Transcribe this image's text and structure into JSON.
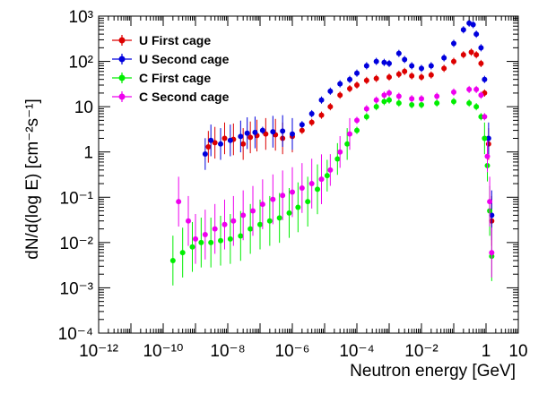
{
  "chart_data": {
    "type": "scatter",
    "xscale": "log",
    "yscale": "log",
    "xlim": [
      1e-12,
      10
    ],
    "ylim": [
      0.0001,
      1000
    ],
    "xlabel": "Neutron energy [GeV]",
    "ylabel": "dN/d(log E) [cm⁻²s⁻¹]",
    "grid": false,
    "legend": "top-left",
    "x_ticks": [
      {
        "label": "10⁻¹²",
        "value": 1e-12
      },
      {
        "label": "10⁻¹⁰",
        "value": 1e-10
      },
      {
        "label": "10⁻⁸",
        "value": 1e-08
      },
      {
        "label": "10⁻⁶",
        "value": 1e-06
      },
      {
        "label": "10⁻⁴",
        "value": 0.0001
      },
      {
        "label": "10⁻²",
        "value": 0.01
      },
      {
        "label": "1",
        "value": 1
      },
      {
        "label": "10",
        "value": 10
      }
    ],
    "y_ticks": [
      {
        "label": "10⁻⁴",
        "value": 0.0001
      },
      {
        "label": "10⁻³",
        "value": 0.001
      },
      {
        "label": "10⁻²",
        "value": 0.01
      },
      {
        "label": "10⁻¹",
        "value": 0.1
      },
      {
        "label": "1",
        "value": 1
      },
      {
        "label": "10",
        "value": 10
      },
      {
        "label": "10²",
        "value": 100
      },
      {
        "label": "10³",
        "value": 1000
      }
    ],
    "series": [
      {
        "name": "U First cage",
        "color": "#dd0000",
        "points": [
          [
            2.5e-09,
            1.3
          ],
          [
            4e-09,
            1.6
          ],
          [
            8e-09,
            2.0
          ],
          [
            1.5e-08,
            1.9
          ],
          [
            3e-08,
            1.5
          ],
          [
            5e-08,
            2.1
          ],
          [
            8e-08,
            2.3
          ],
          [
            1.5e-07,
            2.5
          ],
          [
            3e-07,
            2.4
          ],
          [
            5e-07,
            2.0
          ],
          [
            1e-06,
            2.2
          ],
          [
            2e-06,
            3.0
          ],
          [
            4e-06,
            4.5
          ],
          [
            8e-06,
            6.5
          ],
          [
            1.5e-05,
            10
          ],
          [
            3e-05,
            18
          ],
          [
            6e-05,
            25
          ],
          [
            0.0001,
            30
          ],
          [
            0.0002,
            38
          ],
          [
            0.0004,
            42
          ],
          [
            0.001,
            45
          ],
          [
            0.002,
            52
          ],
          [
            0.003,
            60
          ],
          [
            0.005,
            48
          ],
          [
            0.01,
            45
          ],
          [
            0.02,
            50
          ],
          [
            0.05,
            70
          ],
          [
            0.1,
            100
          ],
          [
            0.2,
            140
          ],
          [
            0.35,
            160
          ],
          [
            0.5,
            140
          ],
          [
            0.7,
            90
          ],
          [
            0.9,
            20
          ],
          [
            1.2,
            1.5
          ],
          [
            1.5,
            0.03
          ]
        ]
      },
      {
        "name": "U Second cage",
        "color": "#0000dd",
        "points": [
          [
            2e-09,
            0.9
          ],
          [
            3e-09,
            1.8
          ],
          [
            6e-09,
            1.5
          ],
          [
            1.2e-08,
            1.8
          ],
          [
            2.5e-08,
            2.2
          ],
          [
            4e-08,
            2.6
          ],
          [
            7e-08,
            2.7
          ],
          [
            1.2e-07,
            3.0
          ],
          [
            2.5e-07,
            2.8
          ],
          [
            5e-07,
            2.9
          ],
          [
            1e-06,
            2.5
          ],
          [
            2e-06,
            4.0
          ],
          [
            4e-06,
            7.0
          ],
          [
            8e-06,
            14
          ],
          [
            1.5e-05,
            22
          ],
          [
            3e-05,
            32
          ],
          [
            6e-05,
            40
          ],
          [
            0.0001,
            55
          ],
          [
            0.0002,
            80
          ],
          [
            0.0004,
            100
          ],
          [
            0.0007,
            95
          ],
          [
            0.001,
            90
          ],
          [
            0.002,
            150
          ],
          [
            0.003,
            110
          ],
          [
            0.005,
            80
          ],
          [
            0.01,
            70
          ],
          [
            0.02,
            80
          ],
          [
            0.05,
            120
          ],
          [
            0.1,
            250
          ],
          [
            0.2,
            500
          ],
          [
            0.3,
            700
          ],
          [
            0.4,
            650
          ],
          [
            0.5,
            400
          ],
          [
            0.7,
            200
          ],
          [
            0.9,
            40
          ],
          [
            1.2,
            2
          ],
          [
            1.5,
            0.04
          ]
        ]
      },
      {
        "name": "C First cage",
        "color": "#00ee00",
        "points": [
          [
            2e-10,
            0.004
          ],
          [
            4e-10,
            0.006
          ],
          [
            8e-10,
            0.008
          ],
          [
            1.5e-09,
            0.01
          ],
          [
            3e-09,
            0.01
          ],
          [
            6e-09,
            0.011
          ],
          [
            1.2e-08,
            0.012
          ],
          [
            2.5e-08,
            0.014
          ],
          [
            5e-08,
            0.02
          ],
          [
            1e-07,
            0.025
          ],
          [
            2e-07,
            0.03
          ],
          [
            4e-07,
            0.035
          ],
          [
            8e-07,
            0.045
          ],
          [
            1.5e-06,
            0.06
          ],
          [
            3e-06,
            0.08
          ],
          [
            6e-06,
            0.15
          ],
          [
            1.2e-05,
            0.3
          ],
          [
            2.5e-05,
            0.7
          ],
          [
            5e-05,
            1.5
          ],
          [
            0.0001,
            3.0
          ],
          [
            0.0002,
            6.0
          ],
          [
            0.0004,
            10
          ],
          [
            0.0007,
            13
          ],
          [
            0.001,
            14
          ],
          [
            0.002,
            12
          ],
          [
            0.005,
            11
          ],
          [
            0.01,
            11
          ],
          [
            0.03,
            12
          ],
          [
            0.1,
            13
          ],
          [
            0.3,
            12
          ],
          [
            0.5,
            10
          ],
          [
            0.7,
            6
          ],
          [
            0.9,
            2
          ],
          [
            1.1,
            0.5
          ],
          [
            1.3,
            0.05
          ],
          [
            1.5,
            0.005
          ]
        ]
      },
      {
        "name": "C Second cage",
        "color": "#ee00ee",
        "points": [
          [
            3e-10,
            0.08
          ],
          [
            6e-10,
            0.03
          ],
          [
            1e-09,
            0.012
          ],
          [
            2e-09,
            0.015
          ],
          [
            4e-09,
            0.02
          ],
          [
            8e-09,
            0.025
          ],
          [
            1.5e-08,
            0.03
          ],
          [
            3e-08,
            0.04
          ],
          [
            6e-08,
            0.05
          ],
          [
            1.2e-07,
            0.07
          ],
          [
            2.5e-07,
            0.09
          ],
          [
            5e-07,
            0.11
          ],
          [
            1e-06,
            0.13
          ],
          [
            2e-06,
            0.16
          ],
          [
            4e-06,
            0.2
          ],
          [
            8e-06,
            0.25
          ],
          [
            1.5e-05,
            0.4
          ],
          [
            3e-05,
            1.0
          ],
          [
            6e-05,
            2.5
          ],
          [
            0.0001,
            5.0
          ],
          [
            0.0002,
            9.0
          ],
          [
            0.0004,
            14
          ],
          [
            0.0007,
            18
          ],
          [
            0.001,
            20
          ],
          [
            0.002,
            17
          ],
          [
            0.005,
            15
          ],
          [
            0.01,
            15
          ],
          [
            0.03,
            17
          ],
          [
            0.1,
            21
          ],
          [
            0.3,
            24
          ],
          [
            0.5,
            24
          ],
          [
            0.7,
            18
          ],
          [
            0.9,
            6
          ],
          [
            1.1,
            0.8
          ],
          [
            1.3,
            0.08
          ],
          [
            1.5,
            0.006
          ]
        ]
      }
    ]
  }
}
